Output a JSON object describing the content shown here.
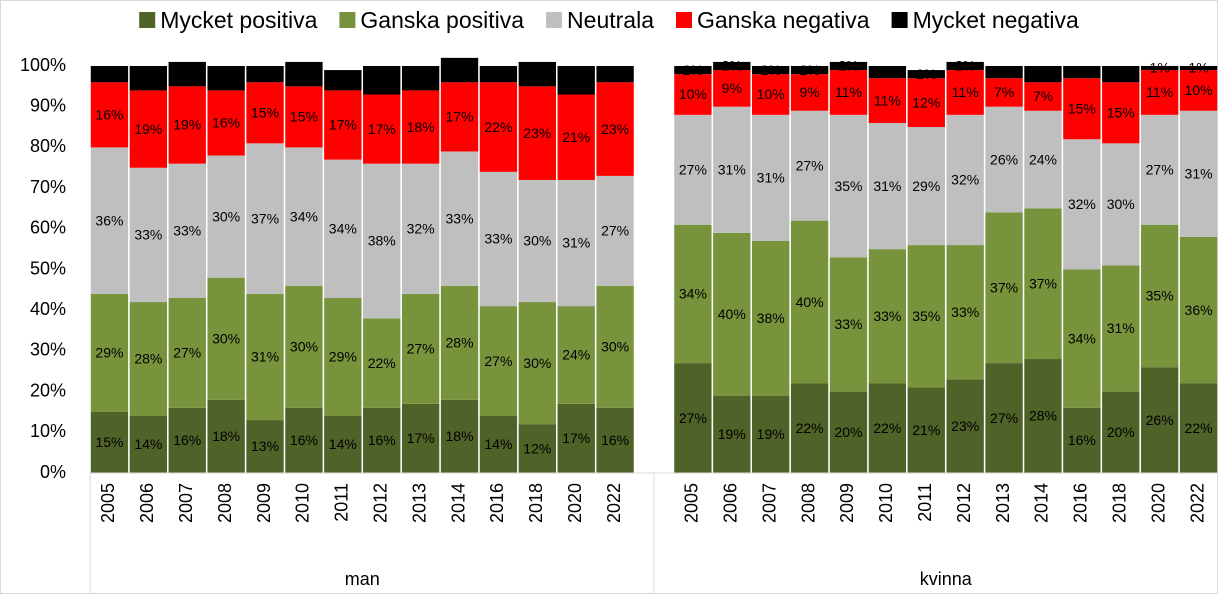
{
  "chart_data": {
    "type": "bar",
    "stacked": true,
    "groups": [
      {
        "name": "man",
        "categories": [
          "2005",
          "2006",
          "2007",
          "2008",
          "2009",
          "2010",
          "2011",
          "2012",
          "2013",
          "2014",
          "2016",
          "2018",
          "2020",
          "2022"
        ]
      },
      {
        "name": "kvinna",
        "categories": [
          "2005",
          "2006",
          "2007",
          "2008",
          "2009",
          "2010",
          "2011",
          "2012",
          "2013",
          "2014",
          "2016",
          "2018",
          "2020",
          "2022"
        ]
      }
    ],
    "series": [
      {
        "name": "Mycket positiva",
        "color": "#4f6228",
        "label_color": "#ffffff",
        "values": [
          15,
          14,
          16,
          18,
          13,
          16,
          14,
          16,
          17,
          18,
          14,
          12,
          17,
          16,
          27,
          19,
          19,
          22,
          20,
          22,
          21,
          23,
          27,
          28,
          16,
          20,
          26,
          22
        ],
        "value_labels": [
          "15%",
          "14%",
          "16%",
          "18%",
          "13%",
          "16%",
          "14%",
          "16%",
          "17%",
          "18%",
          "14%",
          "12%",
          "17%",
          "16%",
          "27%",
          "19%",
          "19%",
          "22%",
          "20%",
          "22%",
          "21%",
          "23%",
          "27%",
          "28%",
          "16%",
          "20%",
          "26%",
          "22%"
        ]
      },
      {
        "name": "Ganska positiva",
        "color": "#77933c",
        "label_color": "#ffffff",
        "values": [
          29,
          28,
          27,
          30,
          31,
          30,
          29,
          22,
          27,
          28,
          27,
          30,
          24,
          30,
          34,
          40,
          38,
          40,
          33,
          33,
          35,
          33,
          37,
          37,
          34,
          31,
          35,
          36
        ],
        "value_labels": [
          "29%",
          "28%",
          "27%",
          "30%",
          "31%",
          "30%",
          "29%",
          "22%",
          "27%",
          "28%",
          "27%",
          "30%",
          "24%",
          "30%",
          "34%",
          "40%",
          "38%",
          "40%",
          "33%",
          "33%",
          "35%",
          "33%",
          "37%",
          "37%",
          "34%",
          "31%",
          "35%",
          "36%"
        ]
      },
      {
        "name": "Neutrala",
        "color": "#bfbfbf",
        "label_color": "#404040",
        "values": [
          36,
          33,
          33,
          30,
          37,
          34,
          34,
          38,
          32,
          33,
          33,
          30,
          31,
          27,
          27,
          31,
          31,
          27,
          35,
          31,
          29,
          32,
          26,
          24,
          32,
          30,
          27,
          31
        ],
        "value_labels": [
          "36%",
          "33%",
          "33%",
          "30%",
          "37%",
          "34%",
          "34%",
          "38%",
          "32%",
          "33%",
          "33%",
          "30%",
          "31%",
          "27%",
          "27%",
          "31%",
          "31%",
          "27%",
          "35%",
          "31%",
          "29%",
          "32%",
          "26%",
          "24%",
          "32%",
          "30%",
          "27%",
          "31%"
        ]
      },
      {
        "name": "Ganska negativa",
        "color": "#ff0000",
        "label_color": "#ffffff",
        "values": [
          16,
          19,
          19,
          16,
          15,
          15,
          17,
          17,
          18,
          17,
          22,
          23,
          21,
          23,
          10,
          9,
          10,
          9,
          11,
          11,
          12,
          11,
          7,
          7,
          15,
          15,
          11,
          10
        ],
        "value_labels": [
          "16%",
          "19%",
          "19%",
          "16%",
          "15%",
          "15%",
          "17%",
          "17%",
          "18%",
          "17%",
          "22%",
          "23%",
          "21%",
          "23%",
          "10%",
          "9%",
          "10%",
          "9%",
          "11%",
          "11%",
          "12%",
          "11%",
          "7%",
          "7%",
          "15%",
          "15%",
          "11%",
          "10%"
        ]
      },
      {
        "name": "Mycket negativa",
        "color": "#000000",
        "label_color": "#ffffff",
        "values": [
          4,
          6,
          6,
          6,
          4,
          6,
          5,
          7,
          6,
          6,
          4,
          6,
          7,
          4,
          2,
          2,
          2,
          2,
          2,
          3,
          2,
          2,
          3,
          4,
          3,
          4,
          1,
          1
        ],
        "value_labels": [
          "4%",
          "6%",
          "6%",
          "6%",
          "4%",
          "6%",
          "5%",
          "7%",
          "6%",
          "6%",
          "4%",
          "6%",
          "7%",
          "4%",
          "2%",
          "2%",
          "2%",
          "2%",
          "2%",
          "3%",
          "2%",
          "2%",
          "3%",
          "4%",
          "3%",
          "4%",
          "1%",
          "1%"
        ]
      }
    ],
    "ylim": [
      0,
      100
    ],
    "yticks": [
      {
        "value": 0,
        "label": "0%"
      },
      {
        "value": 10,
        "label": "10%"
      },
      {
        "value": 20,
        "label": "20%"
      },
      {
        "value": 30,
        "label": "30%"
      },
      {
        "value": 40,
        "label": "40%"
      },
      {
        "value": 50,
        "label": "50%"
      },
      {
        "value": 60,
        "label": "60%"
      },
      {
        "value": 70,
        "label": "70%"
      },
      {
        "value": 80,
        "label": "80%"
      },
      {
        "value": 90,
        "label": "90%"
      },
      {
        "value": 100,
        "label": "100%"
      }
    ],
    "legend": "top"
  }
}
